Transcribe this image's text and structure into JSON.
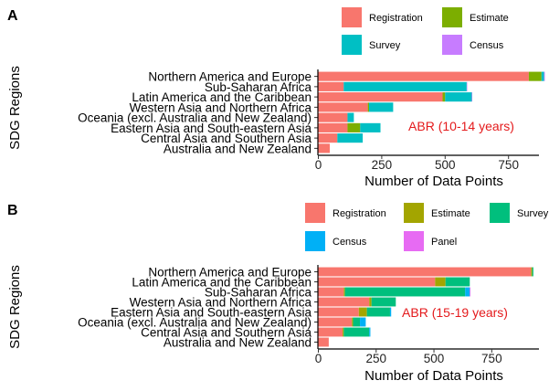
{
  "chart_data": [
    {
      "panel_label": "A",
      "type": "bar",
      "orientation": "horizontal",
      "stacked": true,
      "annotation": "ABR (10-14 years)",
      "xlabel": "Number of Data Points",
      "ylabel": "SDG Regions",
      "xlim": [
        0,
        900
      ],
      "xticks": [
        0,
        250,
        500,
        750
      ],
      "categories": [
        "Northern America and Europe",
        "Sub-Saharan Africa",
        "Latin America and the Caribbean",
        "Western Asia and Northern Africa",
        "Oceania (excl. Australia and New Zealand)",
        "Eastern Asia and South-eastern Asia",
        "Central Asia and Southern Asia",
        "Australia and New Zealand"
      ],
      "legend_position": "top",
      "series": [
        {
          "name": "Registration",
          "color": "#F8766D",
          "values": [
            830,
            100,
            490,
            195,
            115,
            115,
            75,
            45
          ]
        },
        {
          "name": "Estimate",
          "color": "#7CAE00",
          "values": [
            50,
            0,
            10,
            5,
            0,
            50,
            0,
            0
          ]
        },
        {
          "name": "Survey",
          "color": "#00BFC4",
          "values": [
            10,
            485,
            105,
            95,
            25,
            80,
            100,
            0
          ]
        },
        {
          "name": "Census",
          "color": "#C77CFF",
          "values": [
            3,
            2,
            2,
            0,
            0,
            0,
            0,
            0
          ]
        }
      ]
    },
    {
      "panel_label": "B",
      "type": "bar",
      "orientation": "horizontal",
      "stacked": true,
      "annotation": "ABR (15-19 years)",
      "xlabel": "Number of Data Points",
      "ylabel": "SDG Regions",
      "xlim": [
        0,
        940
      ],
      "xticks": [
        0,
        250,
        500,
        750
      ],
      "categories": [
        "Northern America and Europe",
        "Latin America and the Caribbean",
        "Sub-Saharan Africa",
        "Western Asia and Northern Africa",
        "Eastern Asia and South-eastern Asia",
        "Oceania (excl. Australia and New Zealand)",
        "Central Asia and Southern Asia",
        "Australia and New Zealand"
      ],
      "legend_position": "top",
      "series": [
        {
          "name": "Registration",
          "color": "#F8766D",
          "values": [
            920,
            505,
            110,
            220,
            175,
            145,
            105,
            45
          ]
        },
        {
          "name": "Estimate",
          "color": "#A3A500",
          "values": [
            5,
            45,
            5,
            10,
            35,
            5,
            5,
            0
          ]
        },
        {
          "name": "Survey",
          "color": "#00BF7D",
          "values": [
            5,
            105,
            520,
            105,
            100,
            30,
            110,
            0
          ]
        },
        {
          "name": "Census",
          "color": "#00B0F6",
          "values": [
            0,
            0,
            20,
            0,
            5,
            25,
            5,
            0
          ]
        },
        {
          "name": "Panel",
          "color": "#E76BF3",
          "values": [
            0,
            0,
            3,
            0,
            0,
            0,
            0,
            0
          ]
        }
      ]
    }
  ]
}
